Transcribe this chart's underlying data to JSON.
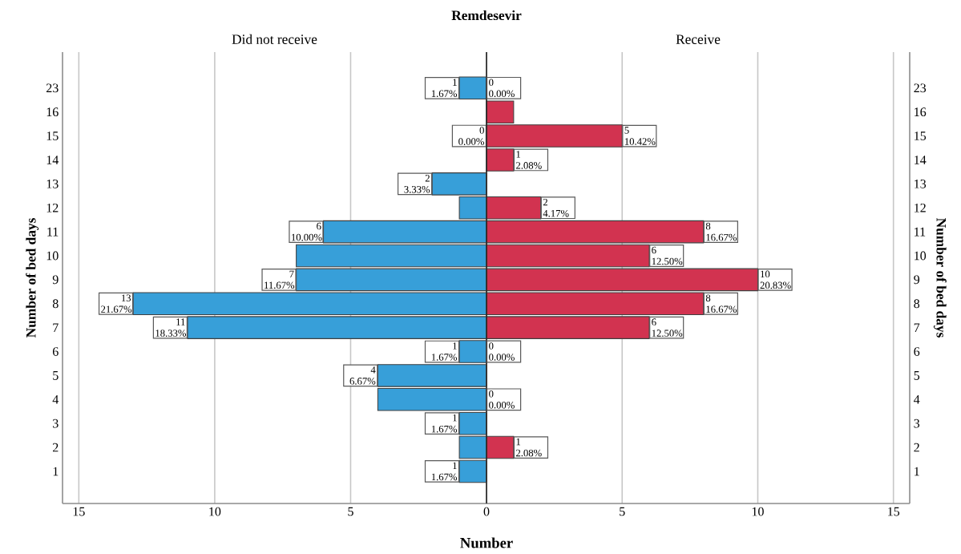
{
  "chart_data": [
    {
      "type": "bar",
      "orientation": "horizontal",
      "title": "Did not receive",
      "xlabel": "Number",
      "ylabel": "Number of bed days",
      "annotations": [
        "Remdesevir"
      ],
      "categories": [
        "23",
        "16",
        "15",
        "14",
        "13",
        "12",
        "11",
        "10",
        "9",
        "8",
        "7",
        "6",
        "5",
        "4",
        "3",
        "2",
        "1"
      ],
      "values": [
        1,
        0,
        0,
        0,
        2,
        1,
        6,
        7,
        7,
        13,
        11,
        1,
        4,
        4,
        1,
        1,
        1
      ],
      "value_labels": [
        "1 1.67%",
        null,
        "0 0.00%",
        null,
        "2 3.33%",
        null,
        "6 10.00%",
        null,
        "7 11.67%",
        "13 21.67%",
        "11 18.33%",
        "1 1.67%",
        "4 6.67%",
        null,
        "1 1.67%",
        null,
        "1 1.67%"
      ],
      "color": "#379fd9",
      "xlim": [
        15.6,
        0
      ],
      "xticks": [
        15,
        10,
        5,
        0
      ],
      "grid": "x"
    },
    {
      "type": "bar",
      "orientation": "horizontal",
      "title": "Receive",
      "ylabel": "Number of bed days",
      "categories": [
        "23",
        "16",
        "15",
        "14",
        "13",
        "12",
        "11",
        "10",
        "9",
        "8",
        "7",
        "6",
        "5",
        "4",
        "3",
        "2",
        "1"
      ],
      "values": [
        0,
        1,
        5,
        1,
        0,
        2,
        8,
        6,
        10,
        8,
        6,
        0,
        0,
        0,
        0,
        1,
        0
      ],
      "value_labels": [
        "0 0.00%",
        null,
        "5 10.42%",
        "1 2.08%",
        null,
        "2 4.17%",
        "8 16.67%",
        "6 12.50%",
        "10 20.83%",
        "8 16.67%",
        "6 12.50%",
        "0 0.00%",
        null,
        "0 0.00%",
        null,
        "1 2.08%",
        null
      ],
      "color": "#d23350",
      "xlim": [
        0,
        15.6
      ],
      "xticks": [
        {
          "value": 0,
          "label": null
        },
        5,
        10,
        15
      ],
      "grid": "x"
    }
  ]
}
